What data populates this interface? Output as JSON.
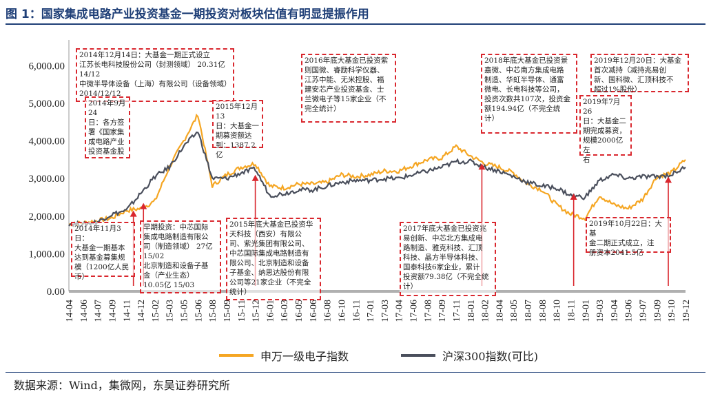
{
  "title": "图 1：国家集成电路产业投资基金一期投资对板块估值有明显提振作用",
  "source": "数据来源：Wind，集微网，东吴证券研究所",
  "colors": {
    "series1": "#f5a623",
    "series2": "#4a4f5c",
    "arrow": "#d9272e",
    "title": "#1f3f77"
  },
  "annotations": [
    {
      "id": "a1",
      "text": "2014年12月14日：大基金一期正式设立\n江苏长电科技股份公司（封测领域） 20.31亿 14/12\n中微半导体设备（上海）有限公司（设备领域）2014/12/12"
    },
    {
      "id": "a2",
      "text": "2014年9月24\n日：各方签\n署《国家集\n成电路产业\n投资基金股"
    },
    {
      "id": "a3",
      "text": "2015年12月13\n日：大基金一\n期募资额达\n到：1387.2亿"
    },
    {
      "id": "a4",
      "text": "2016年底大基金已投资紫\n则国微、睿励科学仪器、\n江苏中能、无米控股、福\n建安芯产业投资基金、士\n兰微电子等15家企业（不\n完全统计）"
    },
    {
      "id": "a5",
      "text": "2018年底大基金已投资景\n嘉微、中芯南方集成电路\n制造、华虹半导体、通富\n微电、长电科技等公司，\n投资次数共107次，投资金\n额194.94亿（不完全统\n计）"
    },
    {
      "id": "a6",
      "text": "2019年12月20日：大基金\n首次减持（减持兆易创\n新、国科微、汇顶科技不\n超过1%股份）"
    },
    {
      "id": "a7",
      "text": "2019年7月26\n日：大基金二\n期完成募资，\n规模2000亿左\n右"
    },
    {
      "id": "a8",
      "text": "2014年11月3日：\n大基金一期基本\n达到基金募集规\n模（1200亿人民\n币）"
    },
    {
      "id": "a9",
      "text": "早期投资：中芯国际\n集成电路制造有限公\n司（制造领域） 27亿\n15/02\n北京制造和设备子基\n金（产业生态）\n10.05亿 15/03"
    },
    {
      "id": "a10",
      "text": "2015年底大基金已投资华\n天科技（西安）有限公\n司、紫光集团有限公司、\n中芯国际集成电路制造有\n限公司、北京制造和设备\n子基金、纳思达股份有限\n公司等21家企业（不完全\n统计）"
    },
    {
      "id": "a11",
      "text": "2017年底大基金已投资兆\n易创新、中芯北方集成电\n路制造、雅克科技、汇顶\n科技、晶方半导体科技、\n国泰科技6家企业，累计\n投资额79.38亿（不完全统\n计）"
    },
    {
      "id": "a12",
      "text": "2019年10月22日：大基\n金二期正式成立，注\n册资本2041.5亿"
    }
  ],
  "chart_data": {
    "type": "line",
    "ylim": [
      0,
      6500
    ],
    "yticks": [
      "0.00",
      "1,000.00",
      "2,000.00",
      "3,000.00",
      "4,000.00",
      "5,000.00",
      "6,000.00"
    ],
    "ytick_values": [
      0,
      1000,
      2000,
      3000,
      4000,
      5000,
      6000
    ],
    "categories": [
      "14-04",
      "14-06",
      "14-07",
      "14-09",
      "14-11",
      "14-12",
      "15-02",
      "15-03",
      "15-05",
      "15-06",
      "15-08",
      "15-09",
      "15-11",
      "15-12",
      "16-01",
      "16-03",
      "16-05",
      "16-06",
      "16-08",
      "16-10",
      "16-11",
      "17-01",
      "17-03",
      "17-04",
      "17-06",
      "17-08",
      "17-09",
      "17-11",
      "18-01",
      "18-02",
      "18-04",
      "18-05",
      "18-07",
      "18-08",
      "18-10",
      "18-11",
      "19-01",
      "19-03",
      "19-04",
      "19-06",
      "19-07",
      "19-09",
      "19-10",
      "19-12"
    ],
    "series": [
      {
        "name": "申万一级电子指数",
        "values": [
          1780,
          1820,
          1880,
          1950,
          2150,
          2200,
          2400,
          3300,
          4000,
          4700,
          2800,
          3100,
          3300,
          3400,
          2800,
          2750,
          2850,
          2850,
          2900,
          3100,
          3050,
          3100,
          3200,
          3200,
          3350,
          3500,
          3550,
          3850,
          3600,
          3400,
          3300,
          3150,
          2850,
          2700,
          2300,
          2050,
          1950,
          2550,
          2300,
          2200,
          2450,
          3050,
          3150,
          3500
        ]
      },
      {
        "name": "沪深300指数(可比)",
        "values": [
          1800,
          1780,
          1850,
          2050,
          2150,
          2600,
          3050,
          3300,
          3850,
          4250,
          3000,
          3000,
          3150,
          3250,
          2550,
          2600,
          2700,
          2700,
          2800,
          2900,
          2950,
          2950,
          3000,
          3000,
          3100,
          3200,
          3300,
          3450,
          3450,
          3300,
          3200,
          3050,
          2900,
          2800,
          2750,
          2550,
          2500,
          2950,
          3100,
          3000,
          3050,
          3050,
          3100,
          3300
        ]
      }
    ],
    "arrows": [
      {
        "x": 4.5,
        "y": 2150
      },
      {
        "x": 5.2,
        "y": 2350
      },
      {
        "x": 13.0,
        "y": 3100
      },
      {
        "x": 28.8,
        "y": 3400
      },
      {
        "x": 35.2,
        "y": 2600
      },
      {
        "x": 41.8,
        "y": 3050
      }
    ]
  }
}
